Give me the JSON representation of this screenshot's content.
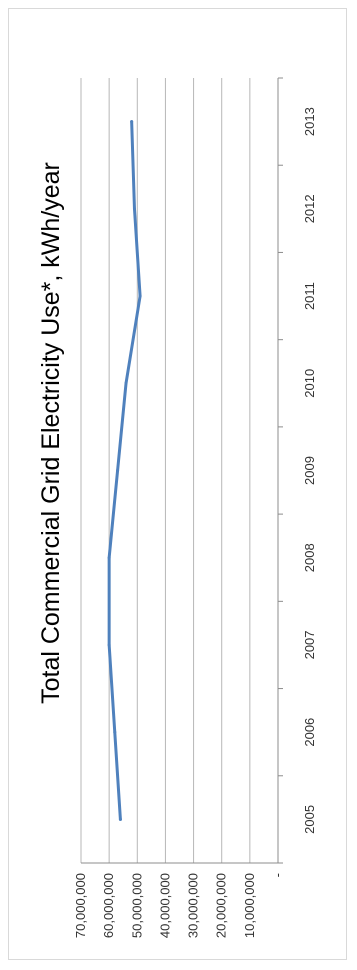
{
  "chart_data": {
    "type": "line",
    "title": "Total Commercial Grid Electricity Use*, kWh/year",
    "xlabel": "",
    "ylabel": "",
    "x": [
      "2005",
      "2006",
      "2007",
      "2008",
      "2009",
      "2010",
      "2011",
      "2012",
      "2013"
    ],
    "series": [
      {
        "values": [
          56000000,
          58000000,
          60000000,
          60000000,
          57000000,
          54000000,
          49000000,
          51000000,
          52000000
        ]
      }
    ],
    "ylim": [
      0,
      70000000
    ],
    "y_ticks": [
      0,
      10000000,
      20000000,
      30000000,
      40000000,
      50000000,
      60000000,
      70000000
    ],
    "y_tick_labels": [
      "-",
      "10,000,000",
      "20,000,000",
      "30,000,000",
      "40,000,000",
      "50,000,000",
      "60,000,000",
      "70,000,000"
    ],
    "grid": true,
    "legend": "none",
    "colors": {
      "series": "#4f81bd",
      "grid": "#b7b7b7"
    }
  }
}
